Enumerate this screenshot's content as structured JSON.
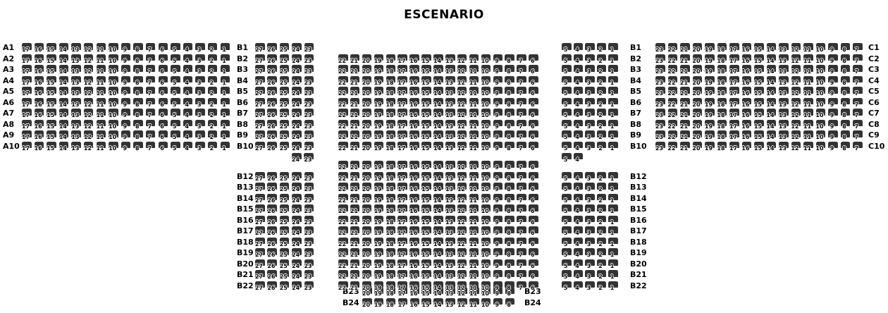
{
  "title": "ESCENARIO",
  "colors": {
    "seat_fill": "#333333",
    "label_text": "#000000",
    "page_bg": "#ffffff"
  },
  "sections": {
    "a": {
      "row_labels": [
        "A1",
        "A2",
        "A3",
        "A4",
        "A5",
        "A6",
        "A7",
        "A8",
        "A9",
        "A10"
      ],
      "seats_per_row": [
        17,
        16,
        15,
        14,
        13,
        12,
        11,
        10,
        9,
        8,
        7,
        6,
        5,
        4,
        3,
        2,
        1
      ]
    },
    "b": {
      "row_labels_upper": [
        "B1",
        "B2",
        "B3",
        "B4",
        "B5",
        "B6",
        "B7",
        "B8",
        "B9",
        "B10"
      ],
      "row_labels_lower": [
        "B12",
        "B13",
        "B14",
        "B15",
        "B16",
        "B17",
        "B18",
        "B19",
        "B20",
        "B21",
        "B22"
      ],
      "row_labels_bottom": [
        "B23",
        "B24"
      ],
      "left_block_seats": [
        27,
        26,
        25,
        24,
        23
      ],
      "center_block_seats": [
        22,
        21,
        20,
        19,
        18,
        17,
        16,
        15,
        14,
        13,
        12,
        11,
        10,
        9,
        8,
        7,
        6
      ],
      "right_block_seats": [
        5,
        4,
        3,
        2,
        1
      ],
      "partial_row_left_seats": [
        24,
        23
      ],
      "partial_row_right_seats": [
        5,
        4
      ],
      "bottom_rows_seats": [
        20,
        19,
        18,
        17,
        16,
        15,
        14,
        13,
        12,
        11,
        10,
        9,
        8
      ]
    },
    "c": {
      "row_labels": [
        "C1",
        "C2",
        "C3",
        "C4",
        "C5",
        "C6",
        "C7",
        "C8",
        "C9",
        "C10"
      ],
      "seats_per_row": [
        23,
        22,
        21,
        20,
        19,
        18,
        17,
        16,
        15,
        14,
        13,
        12,
        11,
        10,
        9,
        8,
        7
      ]
    }
  }
}
